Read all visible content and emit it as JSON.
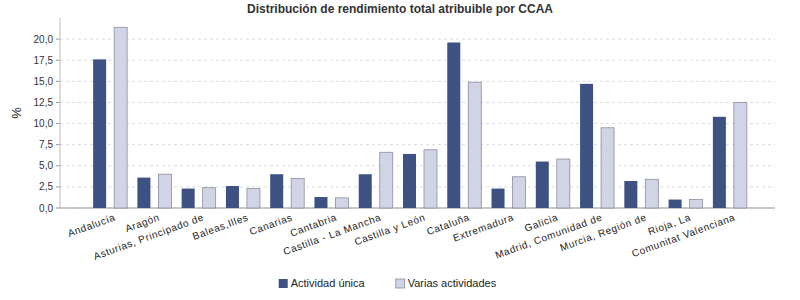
{
  "chart_data": {
    "type": "bar",
    "title": "Distribución de rendimiento total atribuible por CCAA",
    "y_label": "%",
    "categories": [
      "Andalucía",
      "Aragón",
      "Asturias, Principado de",
      "Baleas,Illes",
      "Canarias",
      "Cantabria",
      "Castilla - La Mancha",
      "Castilla y León",
      "Cataluña",
      "Extremadura",
      "Galicia",
      "Madrid, Comunidad de",
      "Murcia, Región de",
      "Rioja, La",
      "Comunitat Valenciana"
    ],
    "series": [
      {
        "name": "Actividad única",
        "color": "#3d5182",
        "values": [
          17.6,
          3.6,
          2.3,
          2.6,
          4.0,
          1.3,
          4.0,
          6.4,
          19.6,
          2.3,
          5.5,
          14.7,
          3.2,
          1.0,
          10.8
        ]
      },
      {
        "name": "Varias actividades",
        "color": "#d0d4e4",
        "values": [
          21.4,
          4.0,
          2.4,
          2.3,
          3.5,
          1.2,
          6.6,
          6.9,
          14.9,
          3.7,
          5.8,
          9.5,
          3.4,
          1.0,
          12.5
        ]
      }
    ],
    "ylim": [
      0,
      22.5
    ],
    "yticks": [
      {
        "value": 0,
        "label": "0,0"
      },
      {
        "value": 2.5,
        "label": "2,5"
      },
      {
        "value": 5,
        "label": "5,0"
      },
      {
        "value": 7.5,
        "label": "7,5"
      },
      {
        "value": 10,
        "label": "10,0"
      },
      {
        "value": 12.5,
        "label": "12,5"
      },
      {
        "value": 15,
        "label": "15,0"
      },
      {
        "value": 17.5,
        "label": "17,5"
      },
      {
        "value": 20,
        "label": "20,0"
      }
    ],
    "grid": true,
    "legend": "bottom"
  }
}
